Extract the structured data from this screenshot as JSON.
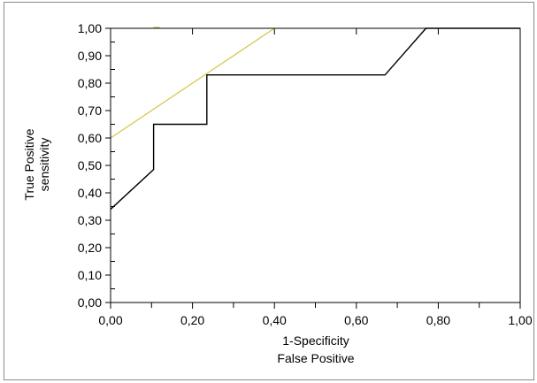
{
  "chart_data": {
    "type": "line",
    "title": "",
    "xlabel": [
      "1-Specificity",
      "False Positive"
    ],
    "ylabel": [
      "True Positive",
      "sensitivity"
    ],
    "xlim": [
      0,
      1
    ],
    "ylim": [
      0,
      1
    ],
    "grid": false,
    "x_tick_labels": [
      "0,00",
      "0,20",
      "0,40",
      "0,60",
      "0,80",
      "1,00"
    ],
    "x_ticks": [
      0,
      0.2,
      0.4,
      0.6,
      0.8,
      1.0
    ],
    "x_minor_ticks": [
      0.1,
      0.3,
      0.5,
      0.7,
      0.9
    ],
    "y_tick_labels": [
      "0,00",
      "0,10",
      "0,20",
      "0,30",
      "0,40",
      "0,50",
      "0,60",
      "0,70",
      "0,80",
      "0,90",
      "1,00"
    ],
    "y_ticks": [
      0,
      0.1,
      0.2,
      0.3,
      0.4,
      0.5,
      0.6,
      0.7,
      0.8,
      0.9,
      1.0
    ],
    "series": [
      {
        "color": "#000000",
        "x": [
          0,
          0.105,
          0.105,
          0.235,
          0.235,
          0.67,
          0.77,
          1.0
        ],
        "y": [
          0.34,
          0.485,
          0.65,
          0.65,
          0.83,
          0.83,
          1.0,
          1.0
        ]
      },
      {
        "color": "#d4c440",
        "x": [
          0,
          0.4
        ],
        "y": [
          0.6,
          1.0
        ]
      }
    ]
  }
}
